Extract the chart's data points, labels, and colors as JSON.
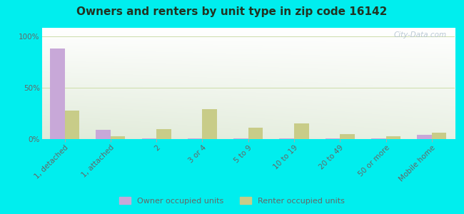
{
  "title": "Owners and renters by unit type in zip code 16142",
  "categories": [
    "1, detached",
    "1, attached",
    "2",
    "3 or 4",
    "5 to 9",
    "10 to 19",
    "20 to 49",
    "50 or more",
    "Mobile home"
  ],
  "owner_values": [
    88,
    9,
    0.5,
    0.5,
    0.5,
    0.5,
    0.5,
    0.5,
    4
  ],
  "renter_values": [
    28,
    3,
    10,
    29,
    11,
    15,
    5,
    3,
    6
  ],
  "owner_color": "#c8a8d8",
  "renter_color": "#c8cc88",
  "background_color": "#00eeee",
  "title_fontsize": 11,
  "title_color": "#223322",
  "ylabel_ticks": [
    "0%",
    "50%",
    "100%"
  ],
  "yticks": [
    0,
    50,
    100
  ],
  "ylim": [
    0,
    108
  ],
  "watermark": "City-Data.com",
  "legend_owner": "Owner occupied units",
  "legend_renter": "Renter occupied units",
  "tick_color": "#666666",
  "gradient_colors": [
    "#c8dca0",
    "#f0f8e8",
    "#f8fef4"
  ],
  "gridline_color": "#ccddaa"
}
